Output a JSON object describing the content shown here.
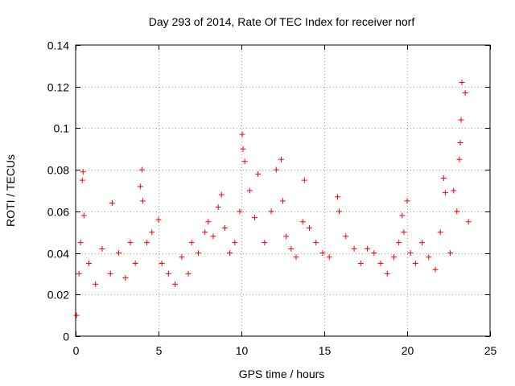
{
  "chart_data": {
    "type": "scatter",
    "title": "Day 293 of 2014, Rate Of TEC Index for receiver norf",
    "xlabel": "GPS time / hours",
    "ylabel": "ROTI / TECUs",
    "xlim": [
      0,
      25
    ],
    "ylim": [
      0,
      0.14
    ],
    "x_ticks": [
      0,
      5,
      10,
      15,
      20,
      25
    ],
    "x_tick_labels": [
      "0",
      "5",
      "10",
      "15",
      "20",
      "25"
    ],
    "y_ticks": [
      0,
      0.02,
      0.04,
      0.06,
      0.08,
      0.1,
      0.12,
      0.14
    ],
    "y_tick_labels": [
      "0",
      "0.02",
      "0.04",
      "0.06",
      "0.08",
      "0.1",
      "0.12",
      "0.14"
    ],
    "grid": true,
    "marker": "+",
    "color": "#ff0000",
    "series": [
      {
        "name": "ROTI",
        "x": [
          0.05,
          0.2,
          0.3,
          0.4,
          0.45,
          0.5,
          0.8,
          1.2,
          1.6,
          2.1,
          2.2,
          2.6,
          3.0,
          3.3,
          3.6,
          3.9,
          4.0,
          4.05,
          4.3,
          4.6,
          5.0,
          5.2,
          5.6,
          6.0,
          6.4,
          6.8,
          7.0,
          7.4,
          7.8,
          8.0,
          8.3,
          8.6,
          8.8,
          9.0,
          9.3,
          9.6,
          9.9,
          10.05,
          10.1,
          10.2,
          10.5,
          10.8,
          11.0,
          11.4,
          11.8,
          12.1,
          12.4,
          12.5,
          12.7,
          13.0,
          13.3,
          13.7,
          13.8,
          14.1,
          14.5,
          14.9,
          15.3,
          15.8,
          15.9,
          16.3,
          16.8,
          17.2,
          17.6,
          18.0,
          18.4,
          18.8,
          19.2,
          19.5,
          19.7,
          19.8,
          20.0,
          20.2,
          20.5,
          20.9,
          21.3,
          21.7,
          22.0,
          22.2,
          22.3,
          22.6,
          22.8,
          23.0,
          23.15,
          23.2,
          23.25,
          23.3,
          23.5,
          23.7
        ],
        "y": [
          0.01,
          0.03,
          0.045,
          0.075,
          0.079,
          0.058,
          0.035,
          0.025,
          0.042,
          0.03,
          0.064,
          0.04,
          0.028,
          0.045,
          0.035,
          0.072,
          0.08,
          0.065,
          0.045,
          0.05,
          0.056,
          0.035,
          0.03,
          0.025,
          0.038,
          0.03,
          0.045,
          0.04,
          0.05,
          0.055,
          0.048,
          0.062,
          0.068,
          0.052,
          0.04,
          0.045,
          0.06,
          0.097,
          0.09,
          0.084,
          0.07,
          0.057,
          0.078,
          0.045,
          0.06,
          0.08,
          0.085,
          0.065,
          0.048,
          0.042,
          0.038,
          0.055,
          0.075,
          0.052,
          0.045,
          0.04,
          0.038,
          0.067,
          0.06,
          0.048,
          0.042,
          0.035,
          0.042,
          0.04,
          0.035,
          0.03,
          0.038,
          0.045,
          0.058,
          0.05,
          0.065,
          0.04,
          0.035,
          0.045,
          0.038,
          0.032,
          0.05,
          0.076,
          0.069,
          0.04,
          0.07,
          0.06,
          0.085,
          0.093,
          0.104,
          0.122,
          0.117,
          0.055
        ]
      }
    ]
  }
}
